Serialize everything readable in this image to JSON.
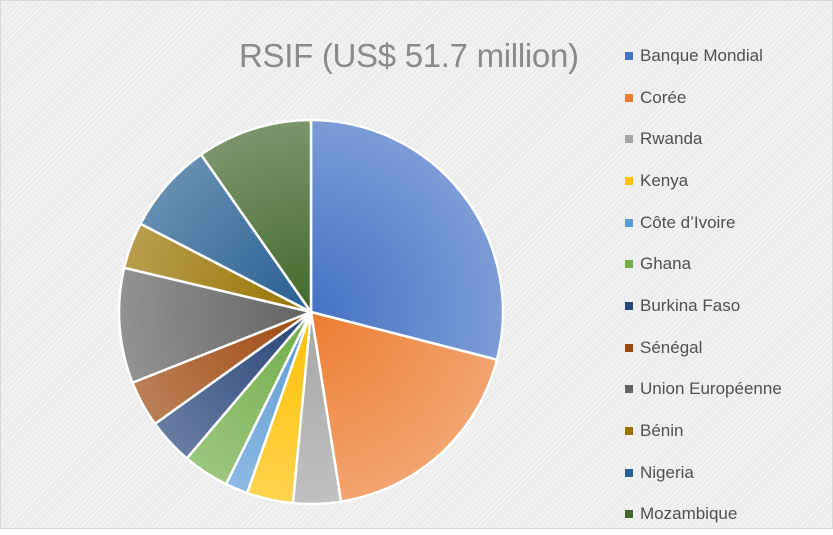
{
  "chart_data": {
    "type": "pie",
    "title": "RSIF (US$ 51.7 million)",
    "categories": [
      "Banque Mondial",
      "Corée",
      "Rwanda",
      "Kenya",
      "Côte d’Ivoire",
      "Ghana",
      "Burkina Faso",
      "Sénégal",
      "Union Européenne",
      "Bénin",
      "Nigeria",
      "Mozambique"
    ],
    "values": [
      29.0,
      18.5,
      4.0,
      3.9,
      1.9,
      3.9,
      3.9,
      3.9,
      9.7,
      3.9,
      7.7,
      9.7
    ],
    "colors": [
      "#4472c4",
      "#ed7d31",
      "#a5a5a5",
      "#ffc000",
      "#5b9bd5",
      "#70ad47",
      "#264478",
      "#9e480e",
      "#636363",
      "#997300",
      "#255e91",
      "#43682b"
    ],
    "legend_position": "right",
    "start_angle": "top, clockwise"
  }
}
